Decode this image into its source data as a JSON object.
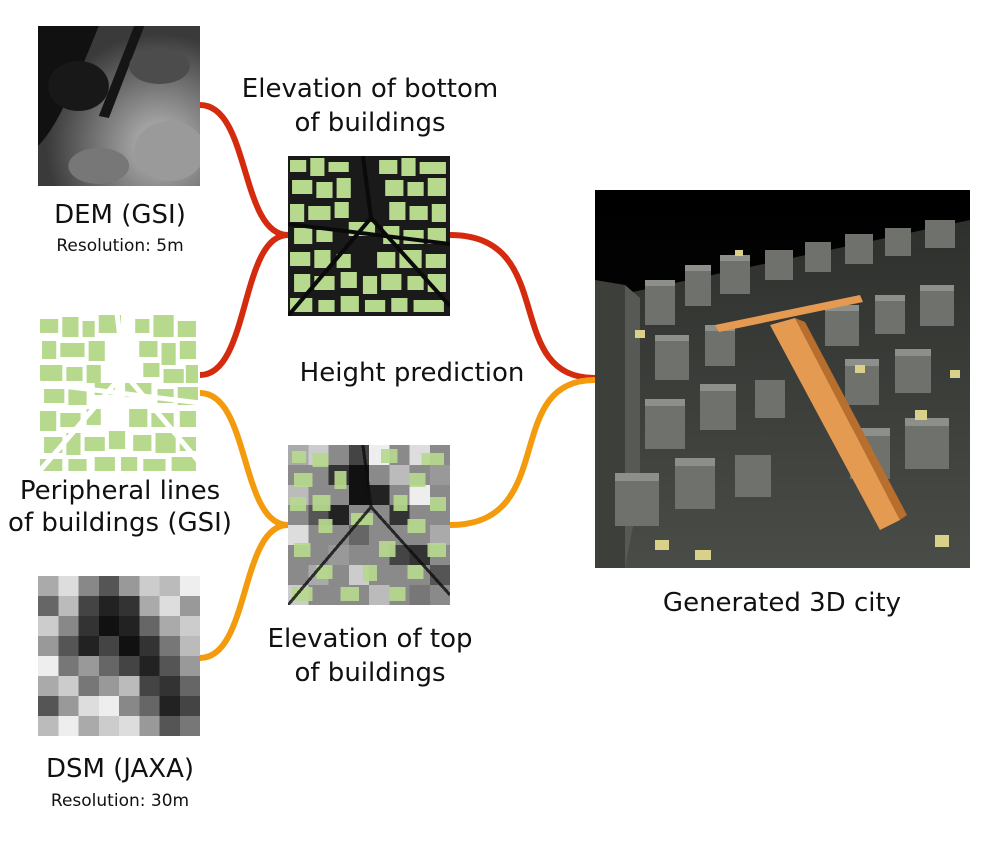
{
  "colors": {
    "red_connector": "#d42a0d",
    "orange_connector": "#f39b0d",
    "building_green": "#b7d98e",
    "building_grey": "#6e716c",
    "highlight_orange": "#e59a52",
    "background_black": "#000000"
  },
  "inputs": {
    "dem": {
      "title": "DEM (GSI)",
      "resolution": "Resolution: 5m",
      "icon": "grayscale-elevation-map"
    },
    "peripheral": {
      "title_line1": "Peripheral lines",
      "title_line2": "of buildings (GSI)",
      "icon": "building-footprint-map"
    },
    "dsm": {
      "title": "DSM (JAXA)",
      "resolution": "Resolution: 30m",
      "icon": "pixelated-surface-map"
    }
  },
  "intermediate": {
    "bottom": {
      "title_line1": "Elevation of bottom",
      "title_line2": "of buildings",
      "icon": "footprints-on-dem"
    },
    "top": {
      "title_line1": "Elevation of top",
      "title_line2": "of buildings",
      "icon": "footprints-on-dsm"
    }
  },
  "process": {
    "label": "Height prediction"
  },
  "output": {
    "label": "Generated 3D city",
    "icon": "3d-city-render"
  }
}
